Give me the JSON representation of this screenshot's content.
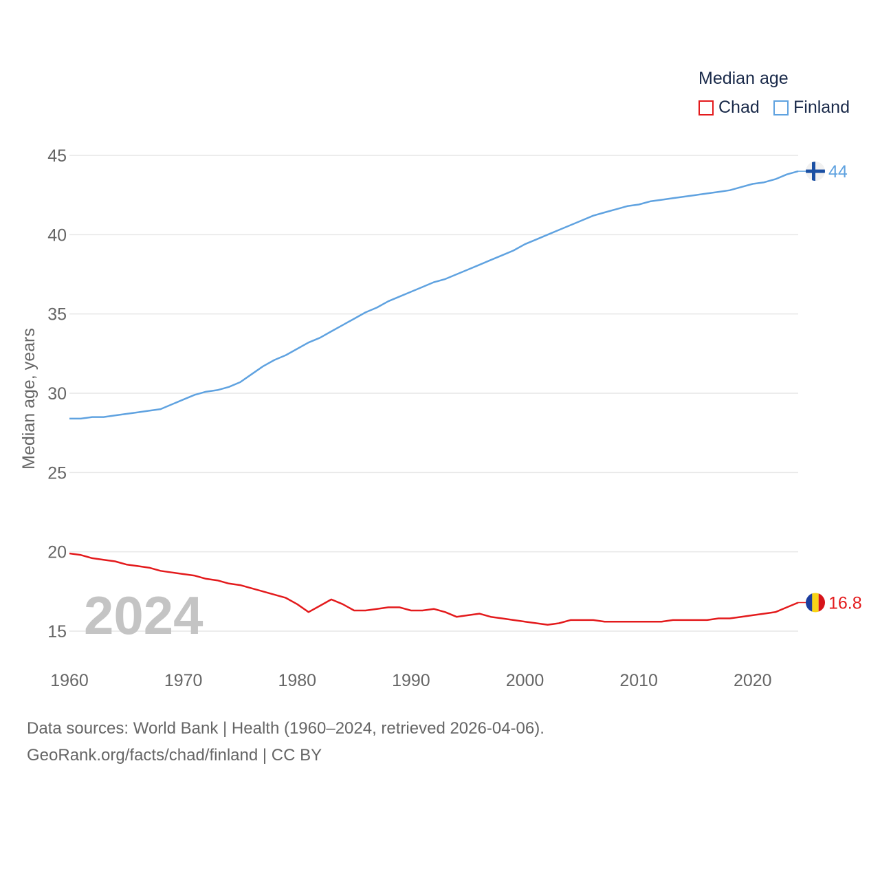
{
  "chart_data": {
    "type": "line",
    "title": "Median age",
    "ylabel": "Median age, years",
    "xlabel": "",
    "xlim": [
      1960,
      2024
    ],
    "ylim": [
      13,
      46
    ],
    "y_ticks": [
      15,
      20,
      25,
      30,
      35,
      40,
      45
    ],
    "x_ticks": [
      1960,
      1970,
      1980,
      1990,
      2000,
      2010,
      2020
    ],
    "year_watermark": "2024",
    "grid": true,
    "legend_position": "top-right",
    "x": [
      1960,
      1961,
      1962,
      1963,
      1964,
      1965,
      1966,
      1967,
      1968,
      1969,
      1970,
      1971,
      1972,
      1973,
      1974,
      1975,
      1976,
      1977,
      1978,
      1979,
      1980,
      1981,
      1982,
      1983,
      1984,
      1985,
      1986,
      1987,
      1988,
      1989,
      1990,
      1991,
      1992,
      1993,
      1994,
      1995,
      1996,
      1997,
      1998,
      1999,
      2000,
      2001,
      2002,
      2003,
      2004,
      2005,
      2006,
      2007,
      2008,
      2009,
      2010,
      2011,
      2012,
      2013,
      2014,
      2015,
      2016,
      2017,
      2018,
      2019,
      2020,
      2021,
      2022,
      2023,
      2024
    ],
    "series": [
      {
        "name": "Chad",
        "color": "#e31a1c",
        "end_label": "16.8",
        "values": [
          19.9,
          19.8,
          19.6,
          19.5,
          19.4,
          19.2,
          19.1,
          19.0,
          18.8,
          18.7,
          18.6,
          18.5,
          18.3,
          18.2,
          18.0,
          17.9,
          17.7,
          17.5,
          17.3,
          17.1,
          16.7,
          16.2,
          16.6,
          17.0,
          16.7,
          16.3,
          16.3,
          16.4,
          16.5,
          16.5,
          16.3,
          16.3,
          16.4,
          16.2,
          15.9,
          16.0,
          16.1,
          15.9,
          15.8,
          15.7,
          15.6,
          15.5,
          15.4,
          15.5,
          15.7,
          15.7,
          15.7,
          15.6,
          15.6,
          15.6,
          15.6,
          15.6,
          15.6,
          15.7,
          15.7,
          15.7,
          15.7,
          15.8,
          15.8,
          15.9,
          16.0,
          16.1,
          16.2,
          16.5,
          16.8
        ]
      },
      {
        "name": "Finland",
        "color": "#5fa2e0",
        "end_label": "44",
        "values": [
          28.4,
          28.4,
          28.5,
          28.5,
          28.6,
          28.7,
          28.8,
          28.9,
          29.0,
          29.3,
          29.6,
          29.9,
          30.1,
          30.2,
          30.4,
          30.7,
          31.2,
          31.7,
          32.1,
          32.4,
          32.8,
          33.2,
          33.5,
          33.9,
          34.3,
          34.7,
          35.1,
          35.4,
          35.8,
          36.1,
          36.4,
          36.7,
          37.0,
          37.2,
          37.5,
          37.8,
          38.1,
          38.4,
          38.7,
          39.0,
          39.4,
          39.7,
          40.0,
          40.3,
          40.6,
          40.9,
          41.2,
          41.4,
          41.6,
          41.8,
          41.9,
          42.1,
          42.2,
          42.3,
          42.4,
          42.5,
          42.6,
          42.7,
          42.8,
          43.0,
          43.2,
          43.3,
          43.5,
          43.8,
          44.0
        ]
      }
    ]
  },
  "legend": {
    "title": "Median age",
    "items": [
      {
        "label": "Chad",
        "color": "#e31a1c"
      },
      {
        "label": "Finland",
        "color": "#5fa2e0"
      }
    ]
  },
  "footer": {
    "line1": "Data sources: World Bank | Health (1960–2024, retrieved 2026-04-06).",
    "line2": "GeoRank.org/facts/chad/finland | CC BY"
  },
  "colors": {
    "grid": "#e6e6e6",
    "axis_text": "#666666",
    "watermark": "#c4c4c4",
    "finland_flag_blue": "#1a4fa3",
    "chad_flag": [
      "#1c3d9e",
      "#f7d417",
      "#d7141a"
    ]
  }
}
